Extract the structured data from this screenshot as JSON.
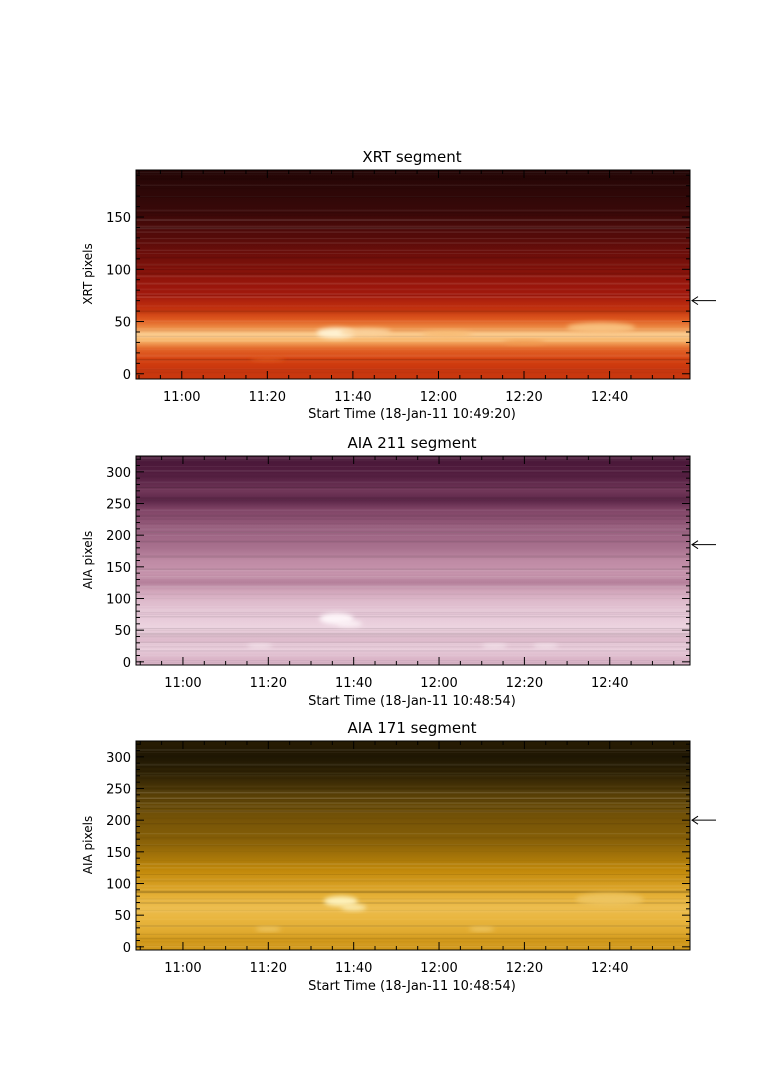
{
  "chart_data": [
    {
      "type": "heatmap",
      "title": "XRT segment",
      "xlabel": "Start Time (18-Jan-11 10:49:20)",
      "ylabel": "XRT pixels",
      "x_tick_labels": [
        "11:00",
        "11:20",
        "11:40",
        "12:00",
        "12:20",
        "12:40"
      ],
      "x_ticks_min_since_10_00": [
        60,
        80,
        100,
        120,
        140,
        160
      ],
      "xlim_min_since_10_00": [
        49.3,
        178.8
      ],
      "y_ticks": [
        0,
        50,
        100,
        150
      ],
      "ylim": [
        -5,
        195
      ],
      "arrow_y": 70,
      "colormap": [
        "#1a0505",
        "#3a0808",
        "#6e0e0a",
        "#a3180c",
        "#d8430f",
        "#f7b060",
        "#fff4d6"
      ],
      "bands": [
        {
          "y": 5,
          "level": 0.62
        },
        {
          "y": 14,
          "level": 0.66
        },
        {
          "y": 24,
          "level": 0.72
        },
        {
          "y": 32,
          "level": 0.85
        },
        {
          "y": 38,
          "level": 0.9
        },
        {
          "y": 44,
          "level": 0.78
        },
        {
          "y": 52,
          "level": 0.7
        },
        {
          "y": 62,
          "level": 0.6
        },
        {
          "y": 75,
          "level": 0.5
        },
        {
          "y": 90,
          "level": 0.45
        },
        {
          "y": 108,
          "level": 0.36
        },
        {
          "y": 130,
          "level": 0.26
        },
        {
          "y": 155,
          "level": 0.16
        },
        {
          "y": 175,
          "level": 0.1
        },
        {
          "y": 192,
          "level": 0.06
        }
      ],
      "brightenings": [
        {
          "x": 96,
          "y": 39,
          "dx": 4.5,
          "dy": 5,
          "level": 1.0
        },
        {
          "x": 103,
          "y": 40,
          "dx": 6,
          "dy": 3.5,
          "level": 0.92
        },
        {
          "x": 158,
          "y": 44,
          "dx": 8,
          "dy": 5,
          "level": 0.88
        },
        {
          "x": 122,
          "y": 38,
          "dx": 6,
          "dy": 3,
          "level": 0.86
        },
        {
          "x": 80,
          "y": 14,
          "dx": 4,
          "dy": 2,
          "level": 0.7
        },
        {
          "x": 140,
          "y": 30,
          "dx": 5,
          "dy": 2,
          "level": 0.8
        }
      ]
    },
    {
      "type": "heatmap",
      "title": "AIA 211 segment",
      "xlabel": "Start Time (18-Jan-11 10:48:54)",
      "ylabel": "AIA pixels",
      "x_tick_labels": [
        "11:00",
        "11:20",
        "11:40",
        "12:00",
        "12:20",
        "12:40"
      ],
      "x_ticks_min_since_10_00": [
        60,
        80,
        100,
        120,
        140,
        160
      ],
      "xlim_min_since_10_00": [
        49.0,
        178.8
      ],
      "y_ticks": [
        0,
        50,
        100,
        150,
        200,
        250,
        300
      ],
      "ylim": [
        -5,
        325
      ],
      "arrow_y": 185,
      "colormap": [
        "#2a0a1e",
        "#4e1a3c",
        "#7a3e60",
        "#a46c8a",
        "#c896ae",
        "#e4c4d4",
        "#fff8fb"
      ],
      "bands": [
        {
          "y": 5,
          "level": 0.78
        },
        {
          "y": 20,
          "level": 0.86
        },
        {
          "y": 35,
          "level": 0.8
        },
        {
          "y": 55,
          "level": 0.88
        },
        {
          "y": 75,
          "level": 0.84
        },
        {
          "y": 95,
          "level": 0.8
        },
        {
          "y": 112,
          "level": 0.72
        },
        {
          "y": 125,
          "level": 0.58
        },
        {
          "y": 140,
          "level": 0.66
        },
        {
          "y": 160,
          "level": 0.62
        },
        {
          "y": 180,
          "level": 0.52
        },
        {
          "y": 200,
          "level": 0.48
        },
        {
          "y": 220,
          "level": 0.42
        },
        {
          "y": 240,
          "level": 0.36
        },
        {
          "y": 255,
          "level": 0.22
        },
        {
          "y": 270,
          "level": 0.3
        },
        {
          "y": 290,
          "level": 0.2
        },
        {
          "y": 310,
          "level": 0.16
        },
        {
          "y": 322,
          "level": 0.14
        }
      ],
      "brightenings": [
        {
          "x": 96,
          "y": 68,
          "dx": 4,
          "dy": 9,
          "level": 1.0
        },
        {
          "x": 99,
          "y": 60,
          "dx": 3,
          "dy": 5,
          "level": 0.98
        },
        {
          "x": 78,
          "y": 25,
          "dx": 3,
          "dy": 3,
          "level": 0.95
        },
        {
          "x": 133,
          "y": 25,
          "dx": 3,
          "dy": 3,
          "level": 0.95
        },
        {
          "x": 145,
          "y": 25,
          "dx": 3,
          "dy": 3,
          "level": 0.95
        }
      ]
    },
    {
      "type": "heatmap",
      "title": "AIA 171 segment",
      "xlabel": "Start Time (18-Jan-11 10:48:54)",
      "ylabel": "AIA pixels",
      "x_tick_labels": [
        "11:00",
        "11:20",
        "11:40",
        "12:00",
        "12:20",
        "12:40"
      ],
      "x_ticks_min_since_10_00": [
        60,
        80,
        100,
        120,
        140,
        160
      ],
      "xlim_min_since_10_00": [
        49.0,
        178.8
      ],
      "y_ticks": [
        0,
        50,
        100,
        150,
        200,
        250,
        300
      ],
      "ylim": [
        -5,
        325
      ],
      "arrow_y": 200,
      "colormap": [
        "#100a02",
        "#2e2204",
        "#5c4206",
        "#8f6508",
        "#c48a0a",
        "#e8b33a",
        "#fff4c0"
      ],
      "bands": [
        {
          "y": 8,
          "level": 0.72
        },
        {
          "y": 25,
          "level": 0.8
        },
        {
          "y": 45,
          "level": 0.84
        },
        {
          "y": 62,
          "level": 0.86
        },
        {
          "y": 80,
          "level": 0.82
        },
        {
          "y": 100,
          "level": 0.74
        },
        {
          "y": 120,
          "level": 0.66
        },
        {
          "y": 140,
          "level": 0.58
        },
        {
          "y": 160,
          "level": 0.5
        },
        {
          "y": 180,
          "level": 0.45
        },
        {
          "y": 200,
          "level": 0.42
        },
        {
          "y": 220,
          "level": 0.38
        },
        {
          "y": 240,
          "level": 0.32
        },
        {
          "y": 260,
          "level": 0.22
        },
        {
          "y": 280,
          "level": 0.16
        },
        {
          "y": 300,
          "level": 0.08
        },
        {
          "y": 318,
          "level": 0.12
        }
      ],
      "brightenings": [
        {
          "x": 97,
          "y": 72,
          "dx": 4,
          "dy": 8,
          "level": 1.0
        },
        {
          "x": 100,
          "y": 62,
          "dx": 3,
          "dy": 5,
          "level": 0.98
        },
        {
          "x": 80,
          "y": 28,
          "dx": 3,
          "dy": 3,
          "level": 0.9
        },
        {
          "x": 130,
          "y": 28,
          "dx": 3,
          "dy": 3,
          "level": 0.9
        },
        {
          "x": 160,
          "y": 75,
          "dx": 8,
          "dy": 10,
          "level": 0.88
        }
      ]
    }
  ]
}
